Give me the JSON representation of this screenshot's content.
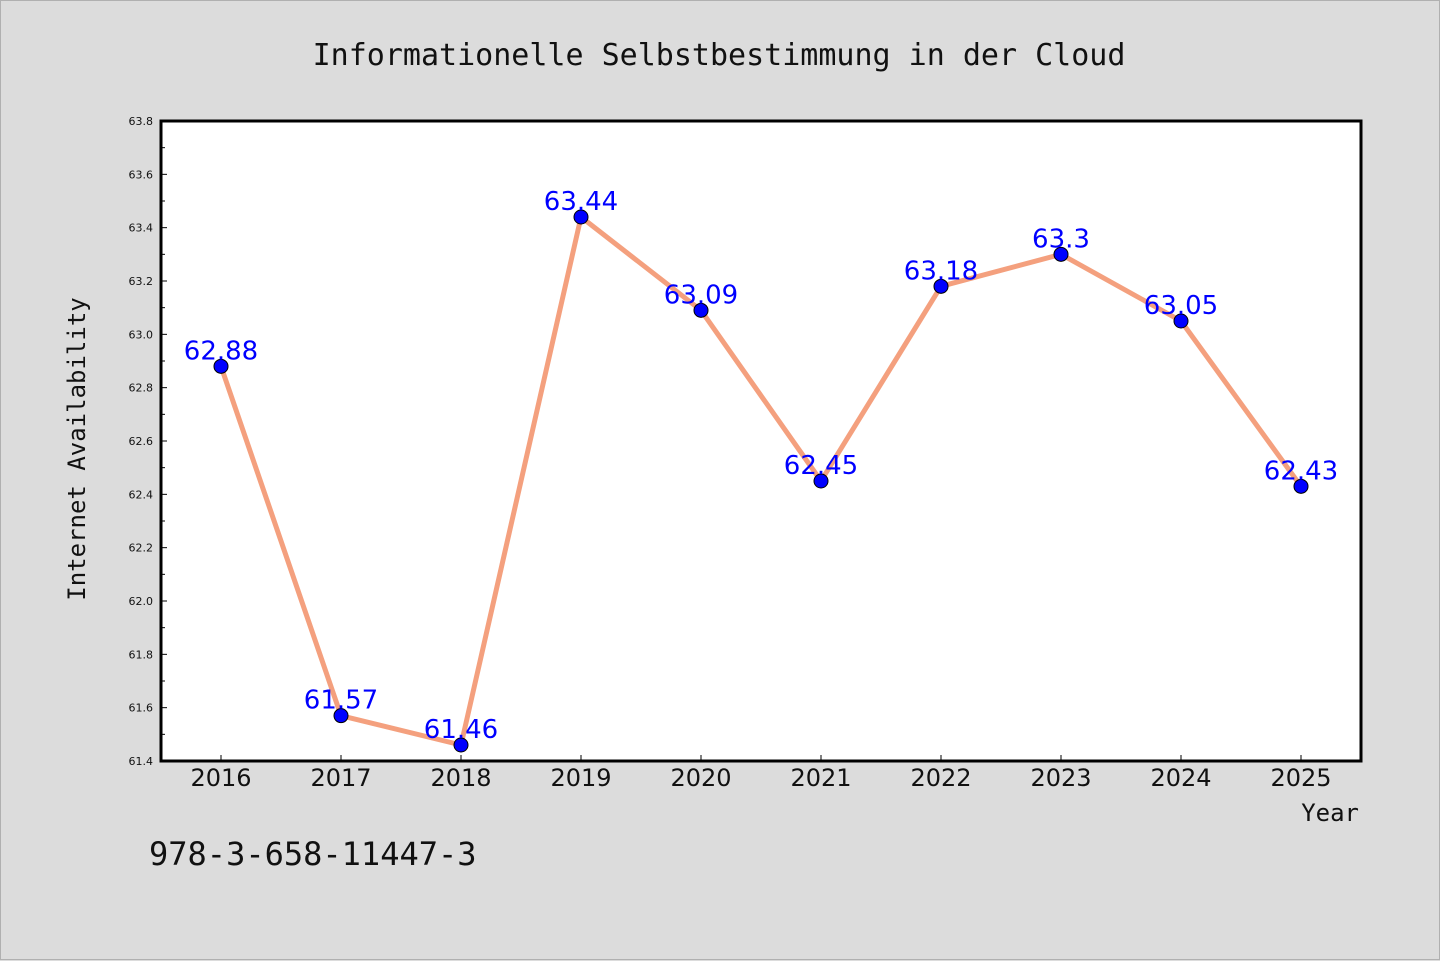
{
  "colors": {
    "background": "#dcdcdc",
    "plot_background": "#ffffff",
    "line": "#f4a07e",
    "marker": "#0000ff",
    "data_label": "#0000ff"
  },
  "chart_data": {
    "type": "line",
    "title": "Informationelle Selbstbestimmung in der Cloud",
    "xlabel": "Year",
    "ylabel": "Internet Availability",
    "categories": [
      "2016",
      "2017",
      "2018",
      "2019",
      "2020",
      "2021",
      "2022",
      "2023",
      "2024",
      "2025"
    ],
    "series": [
      {
        "values": [
          62.88,
          61.57,
          61.46,
          63.44,
          63.09,
          62.45,
          63.18,
          63.3,
          63.05,
          62.43
        ],
        "labels": [
          "62.88",
          "61.57",
          "61.46",
          "63.44",
          "63.09",
          "62.45",
          "63.18",
          "63.3",
          "63.05",
          "62.43"
        ]
      }
    ],
    "ylim": [
      61.4,
      63.8
    ],
    "yticks": [
      "61.4",
      "61.6",
      "61.8",
      "62.0",
      "62.2",
      "62.4",
      "62.6",
      "62.8",
      "63.0",
      "63.2",
      "63.4",
      "63.6",
      "63.8"
    ],
    "grid": false,
    "legend": "none"
  },
  "footer_note": "978-3-658-11447-3"
}
